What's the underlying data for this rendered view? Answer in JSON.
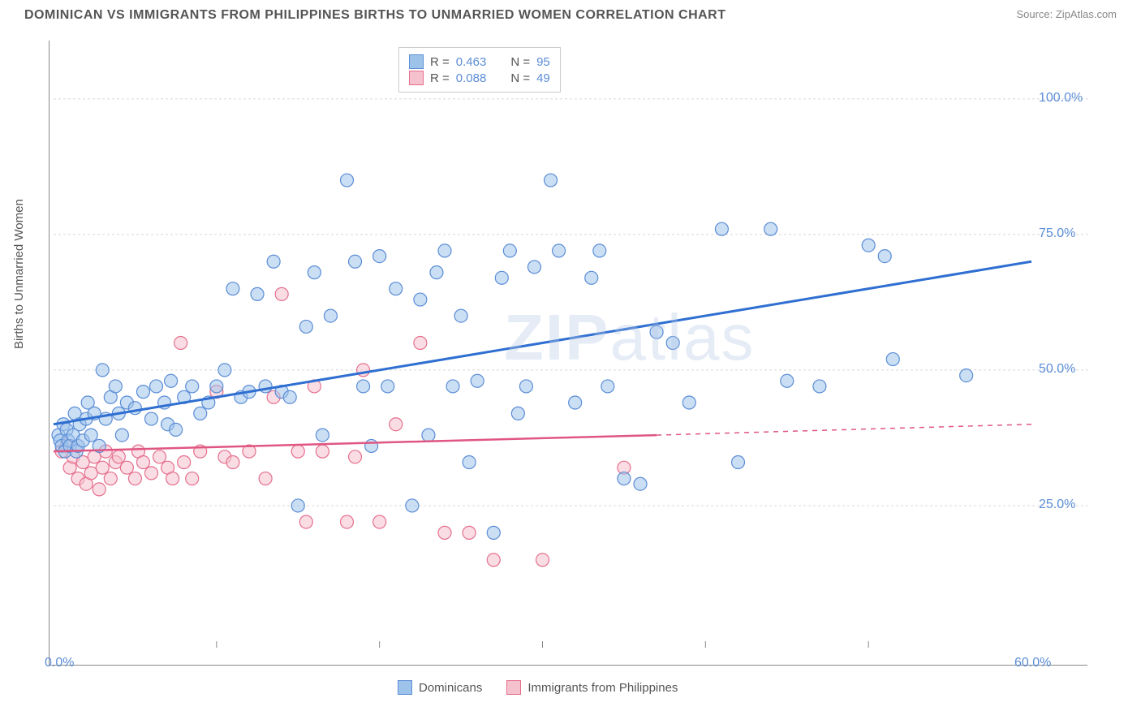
{
  "title": "DOMINICAN VS IMMIGRANTS FROM PHILIPPINES BIRTHS TO UNMARRIED WOMEN CORRELATION CHART",
  "source": "Source: ZipAtlas.com",
  "watermark_a": "ZIP",
  "watermark_b": "atlas",
  "y_axis_label": "Births to Unmarried Women",
  "chart": {
    "type": "scatter",
    "xlim": [
      0,
      60
    ],
    "ylim": [
      0,
      110
    ],
    "x_ticks": [
      {
        "v": 0,
        "label": "0.0%"
      },
      {
        "v": 60,
        "label": "60.0%"
      }
    ],
    "y_ticks": [
      {
        "v": 25,
        "label": "25.0%"
      },
      {
        "v": 50,
        "label": "50.0%"
      },
      {
        "v": 75,
        "label": "75.0%"
      },
      {
        "v": 100,
        "label": "100.0%"
      }
    ],
    "minor_x_lines": [
      10,
      20,
      30,
      40,
      50
    ],
    "grid_color": "#d8d8d8",
    "background_color": "#ffffff",
    "marker_radius": 8,
    "marker_opacity": 0.55,
    "series": [
      {
        "name": "Dominicans",
        "fill": "#9ec3eb",
        "stroke": "#5b8dd6",
        "trend": {
          "x0": 0,
          "y0": 40,
          "x1": 60,
          "y1": 70,
          "dash_from": 60,
          "color": "#2e6fd1",
          "width": 3
        },
        "r_label": "R = ",
        "r_value": "0.463",
        "n_label": "N = ",
        "n_value": "95",
        "points": [
          [
            0.3,
            38
          ],
          [
            0.4,
            37
          ],
          [
            0.5,
            36
          ],
          [
            0.6,
            40
          ],
          [
            0.7,
            35
          ],
          [
            0.8,
            39
          ],
          [
            0.9,
            37
          ],
          [
            1.0,
            36
          ],
          [
            1.2,
            38
          ],
          [
            1.3,
            42
          ],
          [
            1.4,
            35
          ],
          [
            1.5,
            36
          ],
          [
            1.6,
            40
          ],
          [
            1.8,
            37
          ],
          [
            2.0,
            41
          ],
          [
            2.1,
            44
          ],
          [
            2.3,
            38
          ],
          [
            2.5,
            42
          ],
          [
            2.8,
            36
          ],
          [
            3.0,
            50
          ],
          [
            3.2,
            41
          ],
          [
            3.5,
            45
          ],
          [
            3.8,
            47
          ],
          [
            4.0,
            42
          ],
          [
            4.2,
            38
          ],
          [
            4.5,
            44
          ],
          [
            5.0,
            43
          ],
          [
            5.5,
            46
          ],
          [
            6.0,
            41
          ],
          [
            6.3,
            47
          ],
          [
            6.8,
            44
          ],
          [
            7.0,
            40
          ],
          [
            7.2,
            48
          ],
          [
            7.5,
            39
          ],
          [
            8.0,
            45
          ],
          [
            8.5,
            47
          ],
          [
            9.0,
            42
          ],
          [
            9.5,
            44
          ],
          [
            10.0,
            47
          ],
          [
            10.5,
            50
          ],
          [
            11.0,
            65
          ],
          [
            11.5,
            45
          ],
          [
            12.0,
            46
          ],
          [
            12.5,
            64
          ],
          [
            13.0,
            47
          ],
          [
            13.5,
            70
          ],
          [
            14.0,
            46
          ],
          [
            14.5,
            45
          ],
          [
            15.0,
            25
          ],
          [
            15.5,
            58
          ],
          [
            16.0,
            68
          ],
          [
            16.5,
            38
          ],
          [
            17.0,
            60
          ],
          [
            18.0,
            85
          ],
          [
            18.5,
            70
          ],
          [
            19.0,
            47
          ],
          [
            19.5,
            36
          ],
          [
            20.0,
            71
          ],
          [
            20.5,
            47
          ],
          [
            21.0,
            65
          ],
          [
            22.0,
            25
          ],
          [
            22.5,
            63
          ],
          [
            23.0,
            38
          ],
          [
            23.5,
            68
          ],
          [
            24.0,
            72
          ],
          [
            24.5,
            47
          ],
          [
            25.0,
            60
          ],
          [
            25.5,
            33
          ],
          [
            26.0,
            48
          ],
          [
            27.0,
            20
          ],
          [
            27.5,
            67
          ],
          [
            28.0,
            72
          ],
          [
            28.5,
            42
          ],
          [
            29.0,
            47
          ],
          [
            29.5,
            69
          ],
          [
            30.5,
            85
          ],
          [
            31.0,
            72
          ],
          [
            32.0,
            44
          ],
          [
            33.0,
            67
          ],
          [
            33.5,
            72
          ],
          [
            34.0,
            47
          ],
          [
            35.0,
            30
          ],
          [
            36.0,
            29
          ],
          [
            37.0,
            57
          ],
          [
            38.0,
            55
          ],
          [
            39.0,
            44
          ],
          [
            41.0,
            76
          ],
          [
            42.0,
            33
          ],
          [
            44.0,
            76
          ],
          [
            45.0,
            48
          ],
          [
            47.0,
            47
          ],
          [
            50.0,
            73
          ],
          [
            51.0,
            71
          ],
          [
            51.5,
            52
          ],
          [
            56.0,
            49
          ]
        ]
      },
      {
        "name": "Immigrants from Philippines",
        "fill": "#f5c1cd",
        "stroke": "#e56f8e",
        "trend": {
          "x0": 0,
          "y0": 35,
          "x1": 37,
          "y1": 38,
          "dash_from": 37,
          "dash_x1": 60,
          "dash_y1": 40,
          "color": "#e05682",
          "width": 2.5
        },
        "r_label": "R = ",
        "r_value": "0.088",
        "n_label": "N = ",
        "n_value": "49",
        "points": [
          [
            0.5,
            35
          ],
          [
            0.8,
            36
          ],
          [
            1.0,
            32
          ],
          [
            1.2,
            34
          ],
          [
            1.5,
            30
          ],
          [
            1.8,
            33
          ],
          [
            2.0,
            29
          ],
          [
            2.3,
            31
          ],
          [
            2.5,
            34
          ],
          [
            2.8,
            28
          ],
          [
            3.0,
            32
          ],
          [
            3.2,
            35
          ],
          [
            3.5,
            30
          ],
          [
            3.8,
            33
          ],
          [
            4.0,
            34
          ],
          [
            4.5,
            32
          ],
          [
            5.0,
            30
          ],
          [
            5.2,
            35
          ],
          [
            5.5,
            33
          ],
          [
            6.0,
            31
          ],
          [
            6.5,
            34
          ],
          [
            7.0,
            32
          ],
          [
            7.3,
            30
          ],
          [
            7.8,
            55
          ],
          [
            8.0,
            33
          ],
          [
            8.5,
            30
          ],
          [
            9.0,
            35
          ],
          [
            10.0,
            46
          ],
          [
            10.5,
            34
          ],
          [
            11.0,
            33
          ],
          [
            12.0,
            35
          ],
          [
            13.0,
            30
          ],
          [
            13.5,
            45
          ],
          [
            14.0,
            64
          ],
          [
            15.0,
            35
          ],
          [
            15.5,
            22
          ],
          [
            16.0,
            47
          ],
          [
            16.5,
            35
          ],
          [
            18.0,
            22
          ],
          [
            18.5,
            34
          ],
          [
            19.0,
            50
          ],
          [
            20.0,
            22
          ],
          [
            21.0,
            40
          ],
          [
            22.5,
            55
          ],
          [
            24.0,
            20
          ],
          [
            25.5,
            20
          ],
          [
            27.0,
            15
          ],
          [
            30.0,
            15
          ],
          [
            35.0,
            32
          ]
        ]
      }
    ],
    "bottom_legend": [
      {
        "label": "Dominicans",
        "fill": "#9ec3eb",
        "stroke": "#5b8dd6"
      },
      {
        "label": "Immigrants from Philippines",
        "fill": "#f5c1cd",
        "stroke": "#e56f8e"
      }
    ]
  }
}
